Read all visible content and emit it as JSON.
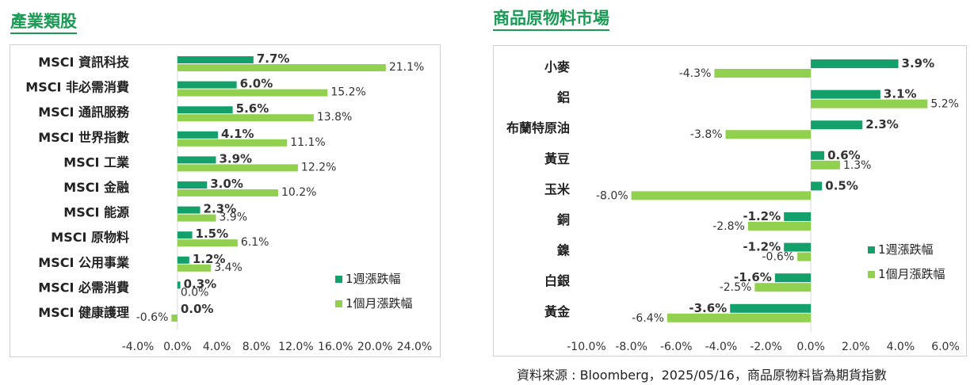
{
  "source_note": "資料來源 : Bloomberg，2025/05/16，商品原物料皆為期貨指數",
  "colors": {
    "weekly": "#13a06a",
    "monthly": "#92d050",
    "title": "#1a9a55"
  },
  "chart_data": [
    {
      "type": "bar",
      "orientation": "horizontal",
      "title": "產業類股",
      "categories": [
        "MSCI 資訊科技",
        "MSCI 非必需消費",
        "MSCI 通訊服務",
        "MSCI 世界指數",
        "MSCI 工業",
        "MSCI 金融",
        "MSCI 能源",
        "MSCI 原物料",
        "MSCI 公用事業",
        "MSCI 必需消費",
        "MSCI 健康護理"
      ],
      "series": [
        {
          "name": "1週漲跌幅",
          "values": [
            7.7,
            6.0,
            5.6,
            4.1,
            3.9,
            3.0,
            2.3,
            1.5,
            1.2,
            0.3,
            0.0
          ],
          "labels": [
            "7.7%",
            "6.0%",
            "5.6%",
            "4.1%",
            "3.9%",
            "3.0%",
            "2.3%",
            "1.5%",
            "1.2%",
            "0.3%",
            "0.0%"
          ]
        },
        {
          "name": "1個月漲跌幅",
          "values": [
            21.1,
            15.2,
            13.8,
            11.1,
            12.2,
            10.2,
            3.9,
            6.1,
            3.4,
            0.0,
            -0.6
          ],
          "labels": [
            "21.1%",
            "15.2%",
            "13.8%",
            "11.1%",
            "12.2%",
            "10.2%",
            "3.9%",
            "6.1%",
            "3.4%",
            "0.0%",
            "-0.6%"
          ]
        }
      ],
      "xlim": [
        -4,
        24
      ],
      "xticks": [
        "-4.0%",
        "0.0%",
        "4.0%",
        "8.0%",
        "12.0%",
        "16.0%",
        "20.0%",
        "24.0%"
      ],
      "legend_position": "bottom-right",
      "grid": false
    },
    {
      "type": "bar",
      "orientation": "horizontal",
      "title": "商品原物料市場",
      "categories": [
        "小麥",
        "鋁",
        "布蘭特原油",
        "黃豆",
        "玉米",
        "銅",
        "鎳",
        "白銀",
        "黃金"
      ],
      "series": [
        {
          "name": "1週漲跌幅",
          "values": [
            3.9,
            3.1,
            2.3,
            0.6,
            0.5,
            -1.2,
            -1.2,
            -1.6,
            -3.6
          ],
          "labels": [
            "3.9%",
            "3.1%",
            "2.3%",
            "0.6%",
            "0.5%",
            "-1.2%",
            "-1.2%",
            "-1.6%",
            "-3.6%"
          ]
        },
        {
          "name": "1個月漲跌幅",
          "values": [
            -4.3,
            5.2,
            -3.8,
            1.3,
            -8.0,
            -2.8,
            -0.6,
            -2.5,
            -6.4
          ],
          "labels": [
            "-4.3%",
            "5.2%",
            "-3.8%",
            "1.3%",
            "-8.0%",
            "-2.8%",
            "-0.6%",
            "-2.5%",
            "-6.4%"
          ]
        }
      ],
      "xlim": [
        -10,
        6
      ],
      "xticks": [
        "-10.0%",
        "-8.0%",
        "-6.0%",
        "-4.0%",
        "-2.0%",
        "0.0%",
        "2.0%",
        "4.0%",
        "6.0%"
      ],
      "legend_position": "right",
      "grid": false
    }
  ]
}
